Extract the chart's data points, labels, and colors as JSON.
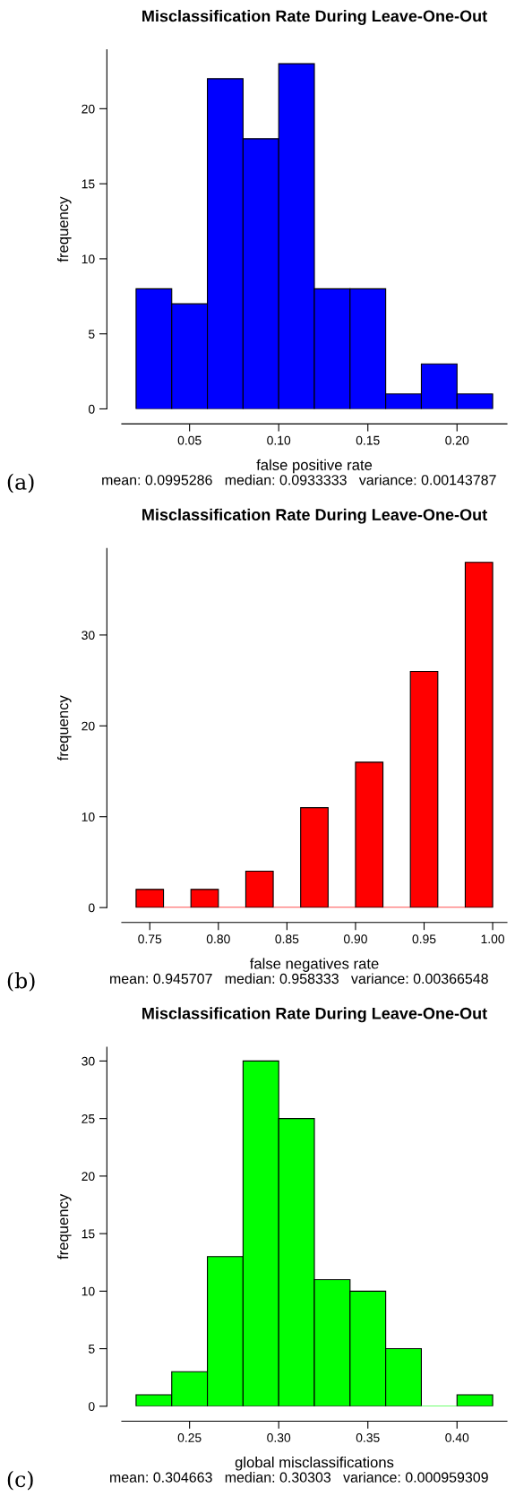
{
  "chart_data": [
    {
      "type": "histogram",
      "title": "Misclassification Rate During Leave-One-Out",
      "xlabel": "false positive rate",
      "ylabel": "frequency",
      "bins": [
        0.02,
        0.04,
        0.06,
        0.08,
        0.1,
        0.12,
        0.14,
        0.16,
        0.18,
        0.2,
        0.22
      ],
      "values": [
        8,
        7,
        22,
        18,
        23,
        8,
        8,
        1,
        3,
        1
      ],
      "color": "#0000ff",
      "xlim": [
        0.012,
        0.228
      ],
      "ylim": [
        0,
        23.92
      ],
      "xticks": [
        0.05,
        {
          "value": 0.1,
          "label": "0.10"
        },
        0.15,
        {
          "value": 0.2,
          "label": "0.20"
        }
      ],
      "yticks": [
        0,
        5,
        10,
        15,
        20
      ],
      "annotations": [
        "mean: 0.0995286   median: 0.0933333   variance: 0.00143787",
        "(a)"
      ]
    },
    {
      "type": "histogram",
      "title": "Misclassification Rate During Leave-One-Out",
      "xlabel": "false negatives rate",
      "ylabel": "frequency",
      "bins": [
        0.74,
        0.76,
        0.78,
        0.8,
        0.82,
        0.84,
        0.86,
        0.88,
        0.9,
        0.92,
        0.94,
        0.96,
        0.98,
        1.0
      ],
      "values": [
        2,
        0,
        2,
        0,
        4,
        0,
        11,
        0,
        16,
        0,
        26,
        0,
        38
      ],
      "color": "#ff0000",
      "xlim": [
        0.7296,
        1.0104
      ],
      "ylim": [
        0,
        39.52
      ],
      "xticks": [
        0.75,
        {
          "value": 0.8,
          "label": "0.80"
        },
        0.85,
        {
          "value": 0.9,
          "label": "0.90"
        },
        0.95,
        {
          "value": 1.0,
          "label": "1.00"
        }
      ],
      "yticks": [
        0,
        10,
        20,
        30
      ],
      "annotations": [
        "mean: 0.945707   median: 0.958333   variance: 0.00366548",
        "(b)"
      ]
    },
    {
      "type": "histogram",
      "title": "Misclassification Rate During Leave-One-Out",
      "xlabel": "global misclassifications",
      "ylabel": "frequency",
      "bins": [
        0.22,
        0.24,
        0.26,
        0.28,
        0.3,
        0.32,
        0.34,
        0.36,
        0.38,
        0.4,
        0.42
      ],
      "values": [
        1,
        3,
        13,
        30,
        25,
        11,
        10,
        5,
        0,
        1
      ],
      "color": "#00ff00",
      "xlim": [
        0.212,
        0.428
      ],
      "ylim": [
        0,
        31.2
      ],
      "xticks": [
        0.25,
        {
          "value": 0.3,
          "label": "0.30"
        },
        0.35,
        {
          "value": 0.4,
          "label": "0.40"
        }
      ],
      "yticks": [
        0,
        5,
        10,
        15,
        20,
        25,
        30
      ],
      "annotations": [
        "mean: 0.304663   median: 0.30303   variance: 0.000959309",
        "(c)"
      ]
    }
  ]
}
